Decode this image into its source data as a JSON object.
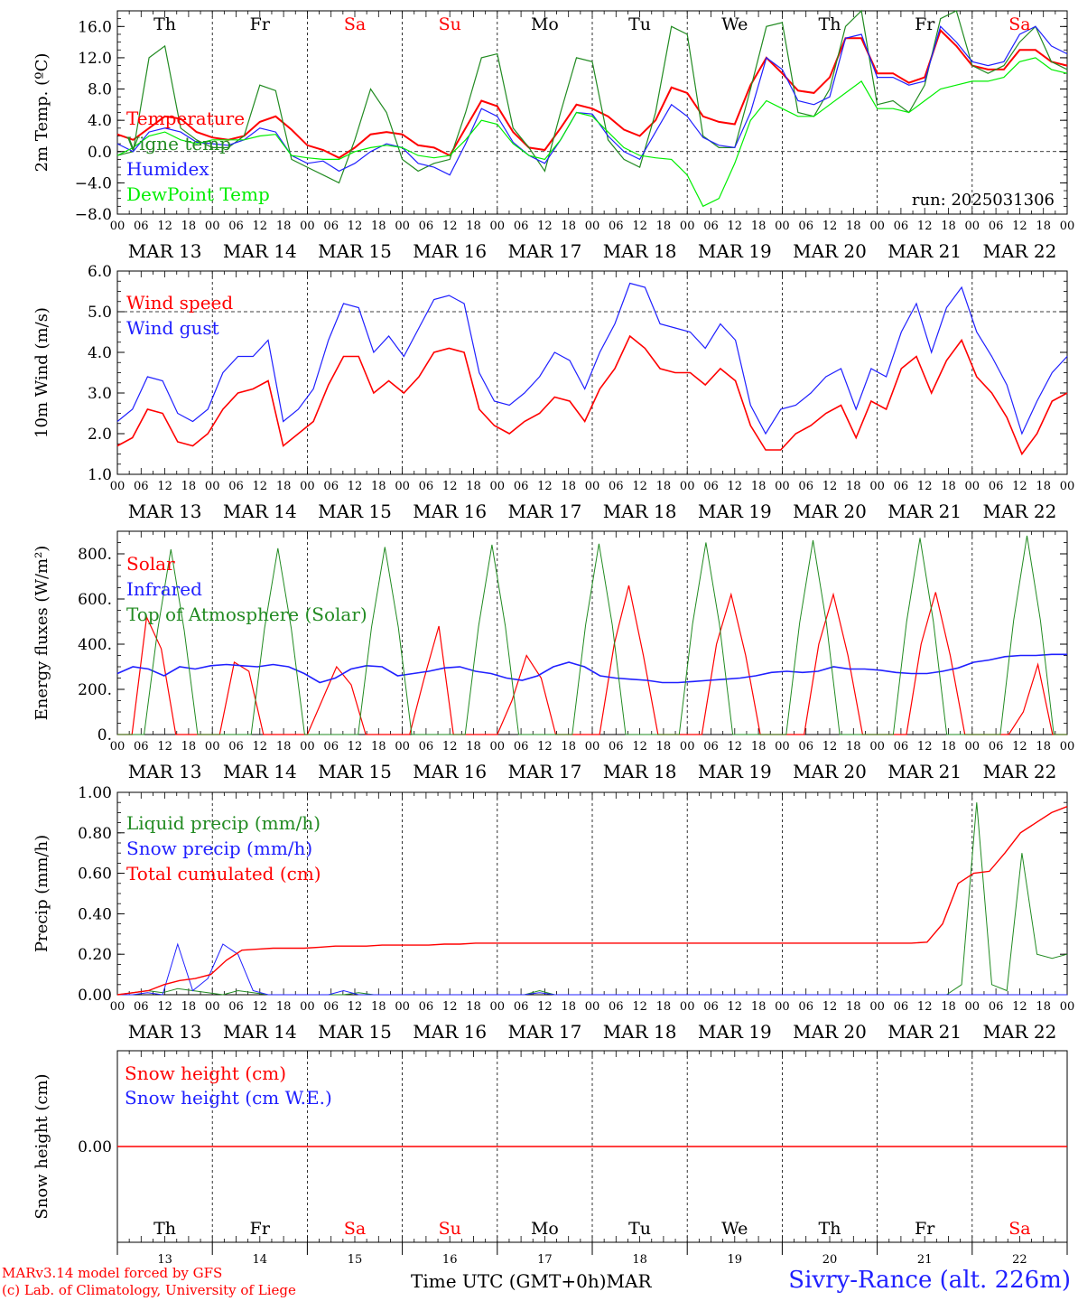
{
  "days": [
    "MAR 13",
    "MAR 14",
    "MAR 15",
    "MAR 16",
    "MAR 17",
    "MAR 18",
    "MAR 19",
    "MAR 20",
    "MAR 21",
    "MAR 22"
  ],
  "weekdays": [
    {
      "label": "Th",
      "color": "#000000"
    },
    {
      "label": "Fr",
      "color": "#000000"
    },
    {
      "label": "Sa",
      "color": "#ff0000"
    },
    {
      "label": "Su",
      "color": "#ff0000"
    },
    {
      "label": "Mo",
      "color": "#000000"
    },
    {
      "label": "Tu",
      "color": "#000000"
    },
    {
      "label": "We",
      "color": "#000000"
    },
    {
      "label": "Th",
      "color": "#000000"
    },
    {
      "label": "Fr",
      "color": "#000000"
    },
    {
      "label": "Sa",
      "color": "#ff0000"
    }
  ],
  "hour_ticks": [
    "00",
    "06",
    "12",
    "18"
  ],
  "day_numbers": [
    "13",
    "14",
    "15",
    "16",
    "17",
    "18",
    "19",
    "20",
    "21",
    "22"
  ],
  "footer": {
    "model": "MARv3.14 model forced by GFS",
    "lab": "(c) Lab. of Climatology, University of Liege",
    "axis_title": "Time UTC (GMT+0h)",
    "month": "MAR",
    "station": "Sivry-Rance (alt. 226m)"
  },
  "chart_data": [
    {
      "type": "line",
      "ylabel": "2m Temp. (ºC)",
      "ylim": [
        -8,
        18
      ],
      "yticks": [
        "16.0",
        "12.0",
        "8.0",
        "4.0",
        "0.0",
        "−4.0",
        "−8.0"
      ],
      "ytick_values": [
        16,
        12,
        8,
        4,
        0,
        -4,
        -8
      ],
      "zero_line": 0,
      "annotation": "run: 2025031306",
      "x_hours_step": 6,
      "series": [
        {
          "name": "Temperature",
          "color": "#ff0000",
          "width": 2,
          "values": [
            2.2,
            1.5,
            3.0,
            4.5,
            4.2,
            2.5,
            1.8,
            1.5,
            2.0,
            3.8,
            4.5,
            2.8,
            0.8,
            0.2,
            -0.8,
            0.5,
            2.2,
            2.5,
            2.2,
            0.8,
            0.5,
            -0.5,
            3.0,
            6.5,
            5.8,
            2.5,
            0.5,
            0.2,
            3.0,
            6.0,
            5.5,
            4.5,
            2.8,
            2.0,
            4.0,
            8.2,
            7.5,
            4.5,
            3.8,
            3.5,
            8.5,
            12.0,
            10.0,
            7.8,
            7.5,
            9.5,
            14.5,
            14.5,
            10.0,
            10.0,
            8.8,
            9.5,
            15.5,
            13.5,
            11.0,
            10.5,
            10.5,
            13.0,
            13.0,
            11.5,
            11.0
          ]
        },
        {
          "name": "Vigne temp",
          "color": "#228b22",
          "width": 1.2,
          "values": [
            -0.5,
            0.0,
            12.0,
            13.5,
            3.0,
            1.5,
            0.5,
            0.5,
            2.0,
            8.5,
            7.8,
            -1.0,
            -2.0,
            -3.0,
            -4.0,
            1.5,
            8.0,
            5.0,
            -1.0,
            -2.5,
            -1.5,
            -1.0,
            5.0,
            12.0,
            12.5,
            3.0,
            0.5,
            -2.5,
            5.0,
            12.0,
            11.5,
            1.5,
            -1.0,
            -2.0,
            5.0,
            16.0,
            15.0,
            2.0,
            0.5,
            0.5,
            8.0,
            16.0,
            16.5,
            5.0,
            4.5,
            8.0,
            16.0,
            18.0,
            6.0,
            6.5,
            5.0,
            8.5,
            17.0,
            18.0,
            11.0,
            10.0,
            11.0,
            14.0,
            16.0,
            11.5,
            10.5
          ]
        },
        {
          "name": "Humidex",
          "color": "#2020ff",
          "width": 1.2,
          "values": [
            1.0,
            0.0,
            2.5,
            3.0,
            2.5,
            1.2,
            1.0,
            0.8,
            1.5,
            3.0,
            2.5,
            -0.5,
            -1.5,
            -1.2,
            -2.5,
            -1.5,
            0.0,
            1.0,
            0.5,
            -1.5,
            -2.0,
            -3.0,
            1.0,
            5.5,
            4.5,
            1.2,
            -0.5,
            -1.5,
            1.5,
            5.0,
            4.8,
            2.0,
            0.0,
            -1.0,
            2.5,
            6.0,
            4.5,
            1.8,
            0.8,
            0.5,
            5.0,
            12.0,
            10.5,
            6.5,
            6.0,
            7.0,
            14.5,
            15.0,
            9.5,
            9.5,
            8.5,
            9.0,
            16.0,
            14.0,
            11.5,
            11.0,
            11.5,
            15.0,
            16.0,
            13.5,
            12.5
          ]
        },
        {
          "name": "DewPoint Temp",
          "color": "#00ee00",
          "width": 1.2,
          "values": [
            -0.5,
            0.5,
            2.0,
            2.5,
            1.5,
            1.0,
            1.5,
            1.5,
            1.5,
            2.0,
            2.2,
            -0.5,
            -0.8,
            -1.0,
            -1.0,
            0.0,
            0.5,
            0.8,
            0.5,
            -0.5,
            -0.8,
            -0.5,
            1.5,
            4.0,
            3.5,
            1.0,
            -0.5,
            -1.0,
            1.5,
            5.0,
            4.5,
            2.5,
            0.5,
            -0.5,
            -0.8,
            -1.0,
            -3.0,
            -7.0,
            -6.0,
            -1.5,
            4.0,
            6.5,
            5.5,
            4.5,
            4.5,
            6.0,
            7.5,
            9.0,
            5.5,
            5.5,
            5.0,
            6.5,
            8.0,
            8.5,
            9.0,
            9.0,
            9.5,
            11.5,
            12.0,
            10.5,
            10.0
          ]
        }
      ]
    },
    {
      "type": "line",
      "ylabel": "10m Wind (m/s)",
      "ylim": [
        1,
        6
      ],
      "yticks": [
        "6.0",
        "5.0",
        "4.0",
        "3.0",
        "2.0",
        "1.0"
      ],
      "ytick_values": [
        6,
        5,
        4,
        3,
        2,
        1
      ],
      "zero_line": 5,
      "x_hours_step": 6,
      "series": [
        {
          "name": "Wind speed",
          "color": "#ff0000",
          "width": 1.6,
          "values": [
            1.7,
            1.9,
            2.6,
            2.5,
            1.8,
            1.7,
            2.0,
            2.6,
            3.0,
            3.1,
            3.3,
            1.7,
            2.0,
            2.3,
            3.2,
            3.9,
            3.9,
            3.0,
            3.3,
            3.0,
            3.4,
            4.0,
            4.1,
            4.0,
            2.6,
            2.2,
            2.0,
            2.3,
            2.5,
            2.9,
            2.8,
            2.3,
            3.1,
            3.6,
            4.4,
            4.1,
            3.6,
            3.5,
            3.5,
            3.2,
            3.6,
            3.3,
            2.2,
            1.6,
            1.6,
            2.0,
            2.2,
            2.5,
            2.7,
            1.9,
            2.8,
            2.6,
            3.6,
            3.9,
            3.0,
            3.8,
            4.3,
            3.4,
            3.0,
            2.4,
            1.5,
            2.0,
            2.8,
            3.0
          ]
        },
        {
          "name": "Wind gust",
          "color": "#2020ff",
          "width": 1.2,
          "values": [
            2.3,
            2.6,
            3.4,
            3.3,
            2.5,
            2.3,
            2.6,
            3.5,
            3.9,
            3.9,
            4.3,
            2.3,
            2.6,
            3.1,
            4.3,
            5.2,
            5.1,
            4.0,
            4.4,
            3.9,
            4.6,
            5.3,
            5.4,
            5.2,
            3.5,
            2.8,
            2.7,
            3.0,
            3.4,
            4.0,
            3.8,
            3.1,
            4.0,
            4.7,
            5.7,
            5.6,
            4.7,
            4.6,
            4.5,
            4.1,
            4.7,
            4.3,
            2.7,
            2.0,
            2.6,
            2.7,
            3.0,
            3.4,
            3.6,
            2.6,
            3.6,
            3.4,
            4.5,
            5.2,
            4.0,
            5.1,
            5.6,
            4.5,
            3.9,
            3.2,
            2.0,
            2.8,
            3.5,
            3.9
          ]
        }
      ]
    },
    {
      "type": "line",
      "ylabel": "Energy fluxes (W/m²)",
      "ylim": [
        0,
        900
      ],
      "yticks": [
        "800.",
        "600.",
        "400.",
        "200.",
        "0."
      ],
      "ytick_values": [
        800,
        600,
        400,
        200,
        0
      ],
      "x_hours_step": 6,
      "series": [
        {
          "name": "Solar",
          "color": "#ff0000",
          "width": 1.2,
          "values": [
            0,
            0,
            520,
            380,
            0,
            0,
            0,
            0,
            320,
            280,
            0,
            0,
            0,
            0,
            150,
            300,
            220,
            0,
            0,
            0,
            0,
            250,
            480,
            0,
            0,
            0,
            0,
            150,
            350,
            250,
            0,
            0,
            0,
            0,
            400,
            660,
            350,
            0,
            0,
            0,
            0,
            400,
            620,
            350,
            0,
            0,
            0,
            0,
            400,
            620,
            350,
            0,
            0,
            0,
            0,
            400,
            630,
            350,
            0,
            0,
            0,
            0,
            100,
            310,
            0,
            0
          ]
        },
        {
          "name": "Infrared",
          "color": "#2020ff",
          "width": 1.6,
          "values": [
            270,
            300,
            290,
            260,
            300,
            290,
            305,
            310,
            305,
            300,
            310,
            300,
            270,
            230,
            250,
            290,
            305,
            300,
            260,
            270,
            280,
            295,
            300,
            280,
            270,
            250,
            240,
            260,
            300,
            320,
            300,
            260,
            250,
            245,
            240,
            230,
            230,
            235,
            240,
            245,
            250,
            260,
            275,
            280,
            275,
            280,
            300,
            290,
            290,
            285,
            275,
            270,
            270,
            280,
            295,
            320,
            330,
            345,
            350,
            350,
            355,
            355
          ]
        },
        {
          "name": "Top of Atmosphere (Solar)",
          "color": "#228b22",
          "width": 1.0,
          "values": [
            0,
            0,
            0,
            460,
            820,
            460,
            0,
            0,
            0,
            0,
            0,
            470,
            825,
            470,
            0,
            0,
            0,
            0,
            0,
            475,
            830,
            475,
            0,
            0,
            0,
            0,
            0,
            480,
            840,
            480,
            0,
            0,
            0,
            0,
            0,
            485,
            845,
            485,
            0,
            0,
            0,
            0,
            0,
            490,
            850,
            490,
            0,
            0,
            0,
            0,
            0,
            495,
            860,
            495,
            0,
            0,
            0,
            0,
            0,
            500,
            870,
            500,
            0,
            0,
            0,
            0,
            0,
            505,
            880,
            505,
            0,
            0
          ]
        }
      ]
    },
    {
      "type": "line",
      "ylabel": "Precip (mm/h)",
      "ylim": [
        0,
        1
      ],
      "yticks": [
        "1.00",
        "0.80",
        "0.60",
        "0.40",
        "0.20",
        "0.00"
      ],
      "ytick_values": [
        1.0,
        0.8,
        0.6,
        0.4,
        0.2,
        0.0
      ],
      "x_hours_step": 6,
      "series": [
        {
          "name": "Liquid precip (mm/h)",
          "color": "#228b22",
          "width": 1.0,
          "values": [
            0,
            0.01,
            0.02,
            0.01,
            0.03,
            0.02,
            0.01,
            0,
            0.02,
            0.01,
            0,
            0,
            0,
            0,
            0,
            0,
            0.01,
            0,
            0,
            0,
            0,
            0,
            0,
            0,
            0,
            0,
            0,
            0,
            0.02,
            0,
            0,
            0,
            0,
            0,
            0,
            0,
            0,
            0,
            0,
            0,
            0,
            0,
            0,
            0,
            0,
            0,
            0,
            0,
            0,
            0,
            0,
            0,
            0,
            0,
            0,
            0,
            0.05,
            0.95,
            0.05,
            0.02,
            0.7,
            0.2,
            0.18,
            0.2
          ]
        },
        {
          "name": "Snow precip (mm/h)",
          "color": "#2020ff",
          "width": 1.0,
          "values": [
            0,
            0,
            0.01,
            0,
            0.25,
            0.02,
            0.08,
            0.25,
            0.2,
            0.02,
            0,
            0,
            0,
            0,
            0,
            0.02,
            0,
            0,
            0,
            0,
            0,
            0,
            0,
            0,
            0,
            0,
            0,
            0,
            0.01,
            0,
            0,
            0,
            0,
            0,
            0,
            0,
            0,
            0,
            0,
            0,
            0,
            0,
            0,
            0,
            0,
            0,
            0,
            0,
            0,
            0,
            0,
            0,
            0,
            0,
            0,
            0,
            0,
            0,
            0,
            0,
            0,
            0,
            0,
            0
          ]
        },
        {
          "name": "Total cumulated (cm)",
          "color": "#ff0000",
          "width": 1.4,
          "values": [
            0,
            0.01,
            0.02,
            0.05,
            0.07,
            0.08,
            0.1,
            0.17,
            0.22,
            0.225,
            0.23,
            0.23,
            0.23,
            0.235,
            0.24,
            0.24,
            0.24,
            0.245,
            0.245,
            0.245,
            0.245,
            0.25,
            0.25,
            0.255,
            0.255,
            0.255,
            0.255,
            0.255,
            0.255,
            0.255,
            0.255,
            0.255,
            0.255,
            0.255,
            0.255,
            0.255,
            0.255,
            0.255,
            0.255,
            0.255,
            0.255,
            0.255,
            0.255,
            0.255,
            0.255,
            0.255,
            0.255,
            0.255,
            0.255,
            0.255,
            0.255,
            0.255,
            0.26,
            0.35,
            0.55,
            0.6,
            0.61,
            0.7,
            0.8,
            0.85,
            0.9,
            0.93
          ]
        }
      ]
    },
    {
      "type": "line",
      "ylabel": "Snow height (cm)",
      "ylim": [
        -1,
        1
      ],
      "yticks": [
        "0.00"
      ],
      "ytick_values": [
        0
      ],
      "x_hours_step": 6,
      "series": [
        {
          "name": "Snow height (cm)",
          "color": "#ff0000",
          "width": 1.4,
          "values": [
            0,
            0
          ]
        },
        {
          "name": "Snow height (cm W.E.)",
          "color": "#2020ff",
          "width": 1.0,
          "values": []
        }
      ]
    }
  ]
}
